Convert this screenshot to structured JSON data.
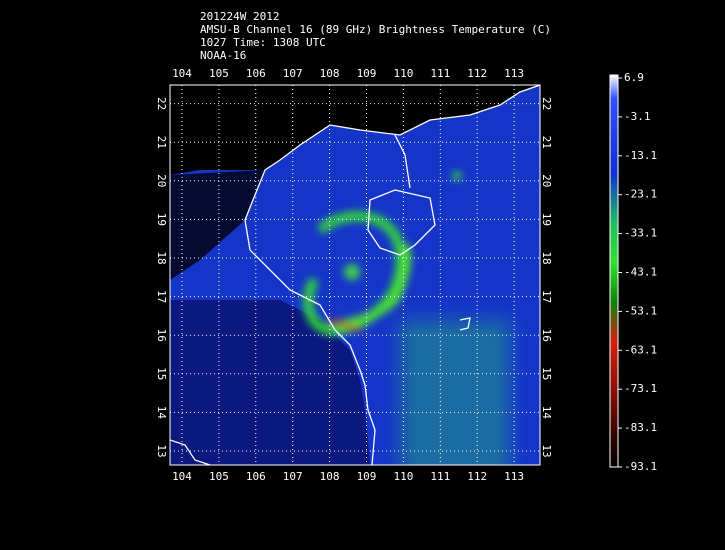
{
  "header": {
    "lines": [
      "201224W 2012",
      "AMSU-B Channel 16 (89 GHz) Brightness Temperature (C)",
      "1027 Time: 1308 UTC",
      "NOAA-16"
    ]
  },
  "map": {
    "lon_ticks": [
      104,
      105,
      106,
      107,
      108,
      109,
      110,
      111,
      112,
      113
    ],
    "lat_ticks": [
      22,
      21,
      20,
      19,
      18,
      17,
      16,
      15,
      14,
      13
    ]
  },
  "colorbar": {
    "labels": [
      6.9,
      -3.1,
      -13.1,
      -23.1,
      -33.1,
      -43.1,
      -53.1,
      -63.1,
      -73.1,
      -83.1,
      -93.1
    ]
  }
}
